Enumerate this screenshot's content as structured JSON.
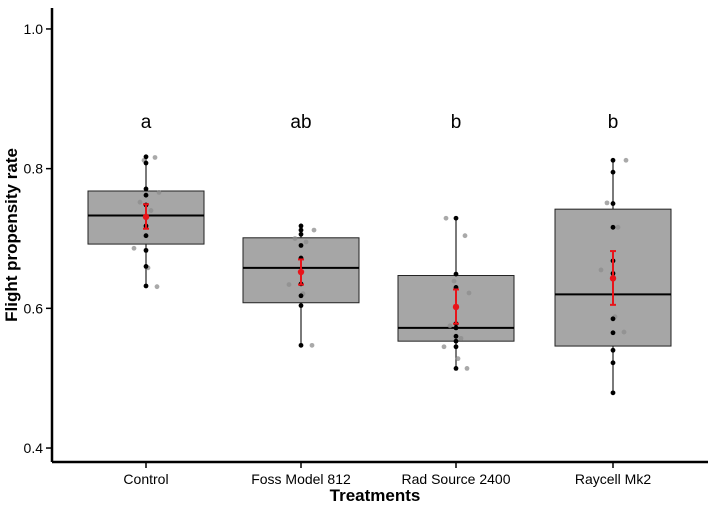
{
  "chart_data": {
    "type": "box",
    "xlabel": "Treatments",
    "ylabel": "Flight propensity rate",
    "ylim": [
      0.38,
      1.03
    ],
    "yticks": [
      0.4,
      0.6,
      0.8,
      1.0
    ],
    "ytick_labels": [
      "0.4",
      "0.6",
      "0.8",
      "1.0"
    ],
    "grid": false,
    "categories": [
      "Control",
      "Foss Model 812",
      "Rad Source 2400",
      "Raycell Mk2"
    ],
    "boxes": [
      {
        "q1": 0.692,
        "median": 0.733,
        "q3": 0.768,
        "whisker_low": 0.632,
        "whisker_high": 0.817
      },
      {
        "q1": 0.608,
        "median": 0.658,
        "q3": 0.701,
        "whisker_low": 0.547,
        "whisker_high": 0.718
      },
      {
        "q1": 0.553,
        "median": 0.572,
        "q3": 0.647,
        "whisker_low": 0.514,
        "whisker_high": 0.729
      },
      {
        "q1": 0.546,
        "median": 0.62,
        "q3": 0.742,
        "whisker_low": 0.479,
        "whisker_high": 0.812
      }
    ],
    "means": [
      {
        "mean": 0.731,
        "se_low": 0.714,
        "se_high": 0.749
      },
      {
        "mean": 0.652,
        "se_low": 0.634,
        "se_high": 0.67
      },
      {
        "mean": 0.602,
        "se_low": 0.578,
        "se_high": 0.627
      },
      {
        "mean": 0.643,
        "se_low": 0.605,
        "se_high": 0.682
      }
    ],
    "points": [
      {
        "dark": [
          0.632,
          0.66,
          0.683,
          0.704,
          0.718,
          0.732,
          0.748,
          0.762,
          0.771,
          0.808,
          0.817
        ],
        "light": [
          0.631,
          0.658,
          0.686,
          0.74,
          0.752,
          0.766,
          0.812,
          0.816
        ]
      },
      {
        "dark": [
          0.547,
          0.604,
          0.618,
          0.635,
          0.652,
          0.672,
          0.69,
          0.706,
          0.712,
          0.718
        ],
        "light": [
          0.547,
          0.621,
          0.634,
          0.695,
          0.7,
          0.712
        ]
      },
      {
        "dark": [
          0.514,
          0.545,
          0.553,
          0.56,
          0.572,
          0.578,
          0.63,
          0.649,
          0.729
        ],
        "light": [
          0.514,
          0.528,
          0.545,
          0.557,
          0.575,
          0.622,
          0.639,
          0.704,
          0.729
        ]
      },
      {
        "dark": [
          0.479,
          0.522,
          0.54,
          0.565,
          0.585,
          0.65,
          0.668,
          0.716,
          0.75,
          0.795,
          0.812
        ],
        "light": [
          0.566,
          0.588,
          0.655,
          0.716,
          0.751,
          0.812
        ]
      }
    ],
    "significance_letters": [
      "a",
      "ab",
      "b",
      "b"
    ],
    "significance_y": 0.868,
    "colors": {
      "box_fill": "#a6a6a6",
      "box_stroke": "#222222",
      "point_dark": "#000000",
      "point_light": "#8c8c8c",
      "mean": "#e8141a",
      "axis": "#000000"
    }
  }
}
